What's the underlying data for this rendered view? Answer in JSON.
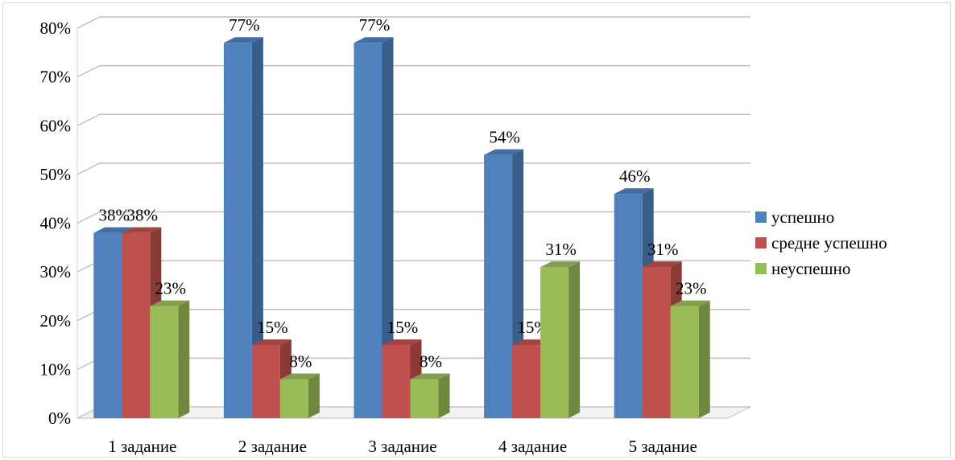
{
  "chart_data": {
    "type": "bar",
    "categories": [
      "1 задание",
      "2 задание",
      "3 задание",
      "4 задание",
      "5 задание"
    ],
    "series": [
      {
        "name": "успешно",
        "values": [
          38,
          77,
          77,
          54,
          46
        ],
        "labels": [
          "38%",
          "77%",
          "77%",
          "54%",
          "46%"
        ],
        "color": "#4f81bd"
      },
      {
        "name": "средне успешно",
        "values": [
          38,
          15,
          15,
          15,
          31
        ],
        "labels": [
          "38%",
          "15%",
          "15%",
          "15%",
          "31%"
        ],
        "color": "#c0504d"
      },
      {
        "name": "неуспешно",
        "values": [
          23,
          8,
          8,
          31,
          23
        ],
        "labels": [
          "23%",
          "8%",
          "8%",
          "31%",
          "23%"
        ],
        "color": "#9bbb59"
      }
    ],
    "ylim": [
      0,
      80
    ],
    "yticks": [
      "0%",
      "10%",
      "20%",
      "30%",
      "40%",
      "50%",
      "60%",
      "70%",
      "80%"
    ],
    "grid": true,
    "legend_position": "right",
    "style": "3d-clustered-column"
  }
}
